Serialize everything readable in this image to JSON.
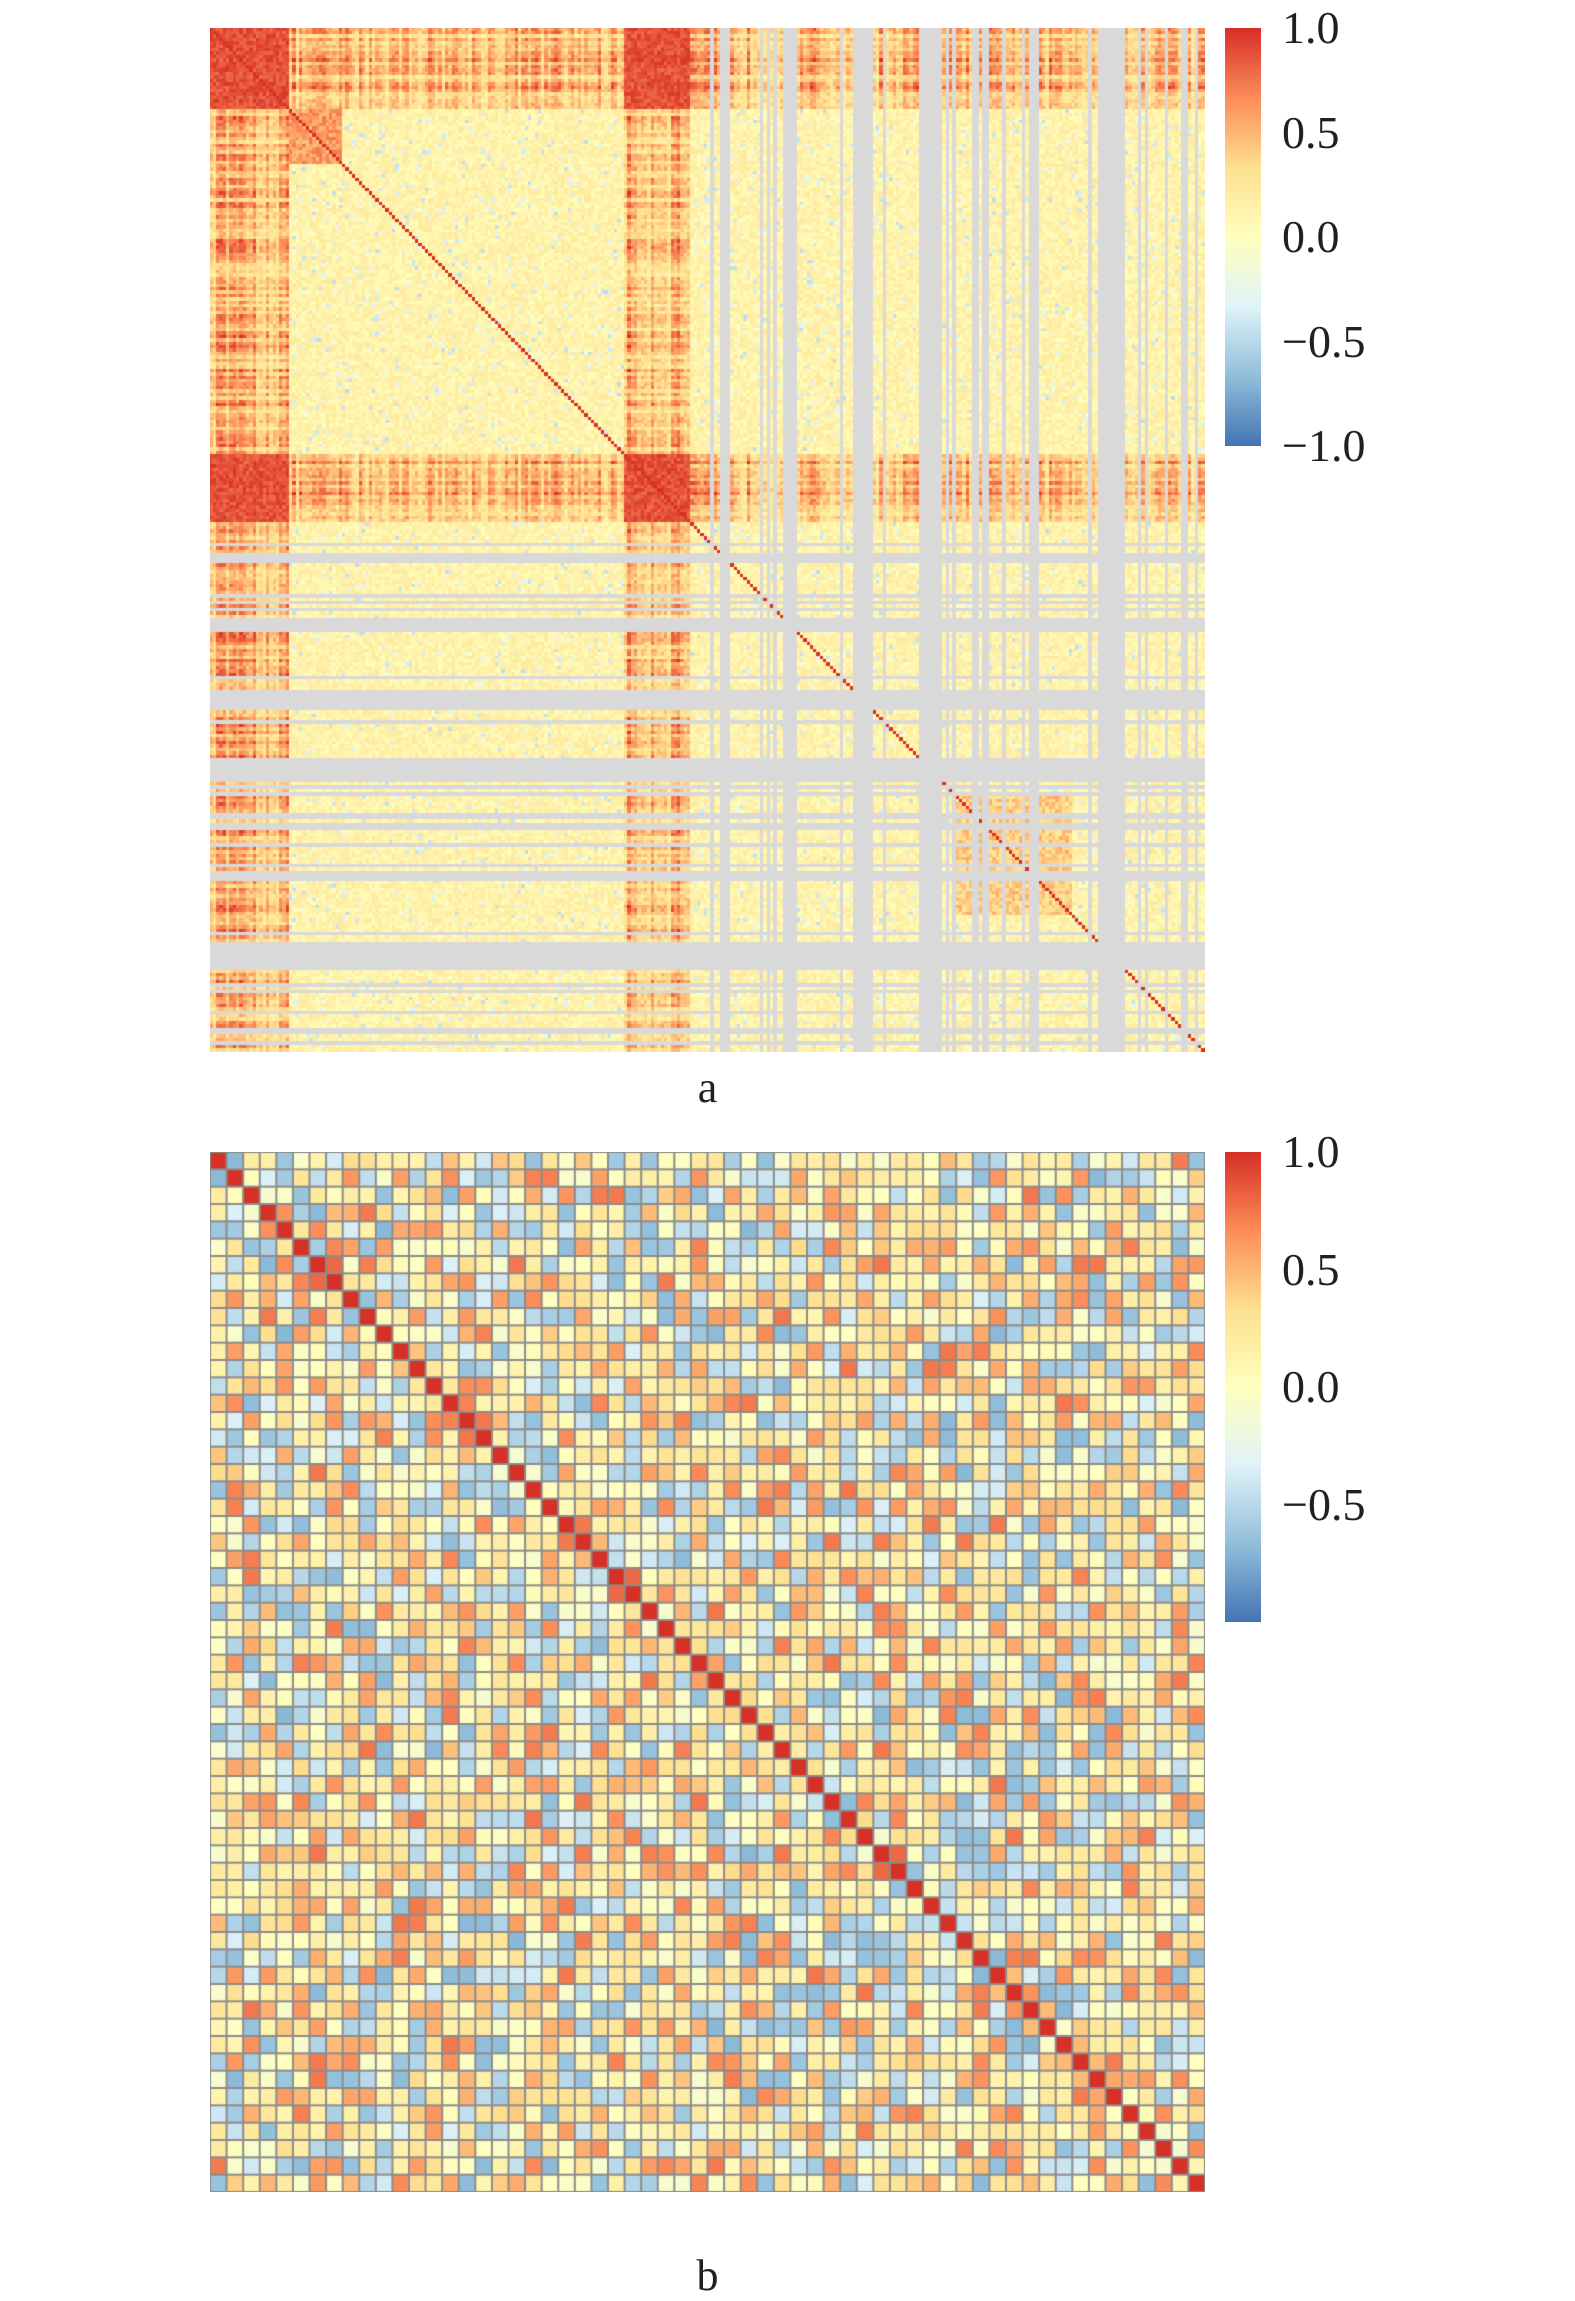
{
  "chart_data": [
    {
      "type": "heatmap",
      "panel_label": "a",
      "title": "",
      "xlabel": "",
      "ylabel": "",
      "colorscale": {
        "min": -1.0,
        "max": 1.0,
        "stops": [
          "#4575b4",
          "#91bfdb",
          "#e0f3f8",
          "#ffffbf",
          "#fee090",
          "#fc8d59",
          "#d73027"
        ],
        "tick_labels": [
          "1.0",
          "0.5",
          "0.0",
          "−0.5",
          "−1.0"
        ],
        "tick_values": [
          1.0,
          0.5,
          0.0,
          -0.5,
          -1.0
        ]
      },
      "missing_color": "#d9d9d9",
      "matrix": {
        "size": 300,
        "diagonal_value": 1.0,
        "correlated_blocks": [
          {
            "start": 0,
            "end": 24,
            "value": 0.85
          },
          {
            "start": 24,
            "end": 40,
            "value": 0.6
          },
          {
            "start": 125,
            "end": 145,
            "value": 0.82
          },
          {
            "start": 224,
            "end": 260,
            "value": 0.4
          }
        ],
        "missing_ranges": [
          {
            "start": 173,
            "end": 177
          },
          {
            "start": 195,
            "end": 200
          },
          {
            "start": 214,
            "end": 220
          },
          {
            "start": 247,
            "end": 250
          },
          {
            "start": 270,
            "end": 276
          }
        ]
      }
    },
    {
      "type": "heatmap",
      "panel_label": "b",
      "title": "",
      "xlabel": "",
      "ylabel": "",
      "colorscale": {
        "min": -1.0,
        "max": 1.0,
        "stops": [
          "#4575b4",
          "#91bfdb",
          "#e0f3f8",
          "#ffffbf",
          "#fee090",
          "#fc8d59",
          "#d73027"
        ],
        "tick_labels": [
          "1.0",
          "0.5",
          "0.0",
          "−0.5"
        ],
        "tick_values": [
          1.0,
          0.5,
          0.0,
          -0.5
        ]
      },
      "cell_border_color": "#8c8c8c",
      "matrix": {
        "size": 60,
        "diagonal_value": 1.0,
        "highlight_pairs": [
          {
            "row": 6,
            "col": 7,
            "value": 0.8
          },
          {
            "row": 14,
            "col": 15,
            "value": 0.7
          },
          {
            "row": 15,
            "col": 16,
            "value": 0.75
          },
          {
            "row": 24,
            "col": 25,
            "value": 0.8
          },
          {
            "row": 40,
            "col": 41,
            "value": 0.8
          }
        ]
      }
    }
  ]
}
